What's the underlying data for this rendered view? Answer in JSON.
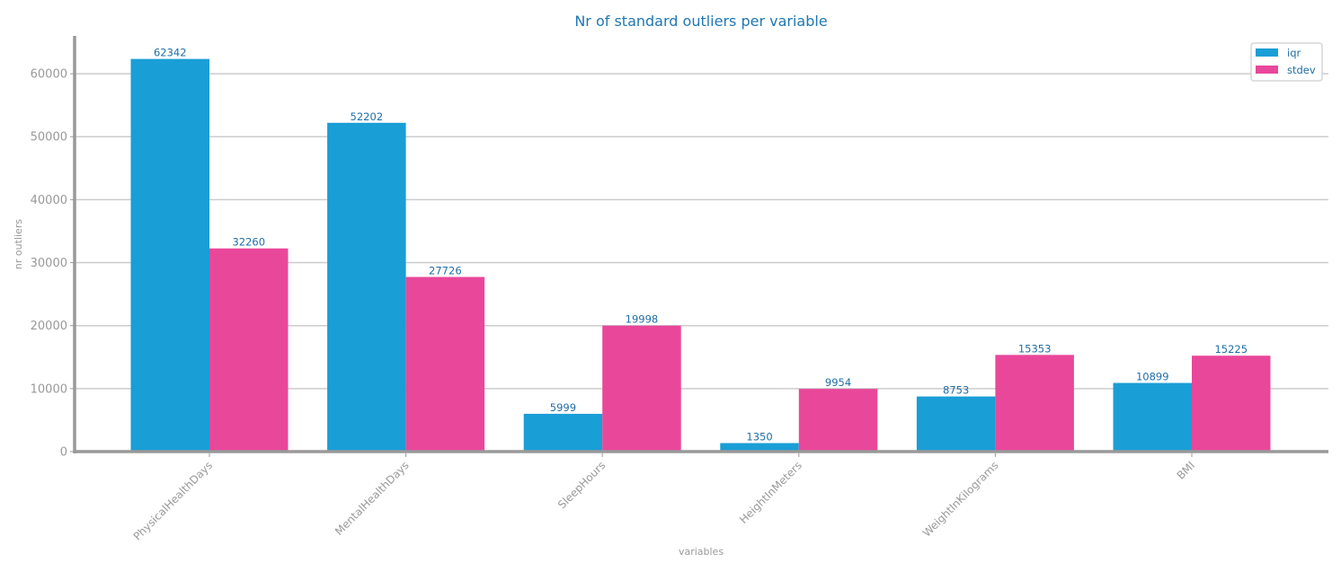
{
  "chart_data": {
    "type": "bar",
    "title": "Nr of standard outliers per variable",
    "xlabel": "variables",
    "ylabel": "nr outliers",
    "categories": [
      "PhysicalHealthDays",
      "MentalHealthDays",
      "SleepHours",
      "HeightInMeters",
      "WeightInKilograms",
      "BMI"
    ],
    "series": [
      {
        "name": "iqr",
        "values": [
          62342,
          52202,
          5999,
          1350,
          8753,
          10899
        ],
        "color": "#1a9ed6"
      },
      {
        "name": "stdev",
        "values": [
          32260,
          27726,
          19998,
          9954,
          15353,
          15225
        ],
        "color": "#e9479a"
      }
    ],
    "ylim": [
      0,
      66000
    ],
    "yticks": [
      0,
      10000,
      20000,
      30000,
      40000,
      50000,
      60000
    ],
    "grid": true,
    "legend_position": "top-right",
    "colors": {
      "title": "#1f77b4",
      "data_label": "#1f6fa8",
      "axis_text": "#999999",
      "grid": "#cccccc",
      "axis_line": "#999999"
    }
  }
}
